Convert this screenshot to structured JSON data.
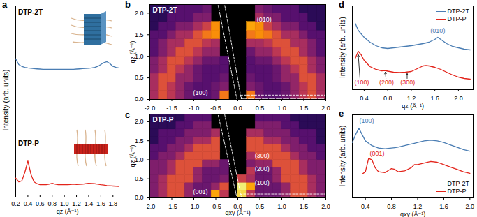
{
  "chart_data": [
    {
      "panel": "a",
      "type": "line",
      "x_label": "qz (Å⁻¹)",
      "y_label": "Intensity (arb. units)",
      "xlim": [
        0.2,
        1.9
      ],
      "ylim": [
        0,
        1
      ],
      "xticks": [
        0.2,
        0.4,
        0.6,
        0.8,
        {
          "value": 1,
          "label": "1.0"
        },
        1.2,
        1.4,
        1.6,
        1.8
      ],
      "tick_labels": "x",
      "x": [
        0.2,
        0.25,
        0.3,
        0.35,
        0.4,
        0.45,
        0.5,
        0.55,
        0.6,
        0.65,
        0.7,
        0.75,
        0.8,
        0.85,
        0.9,
        0.95,
        1.0,
        1.05,
        1.1,
        1.15,
        1.2,
        1.25,
        1.3,
        1.35,
        1.4,
        1.45,
        1.5,
        1.55,
        1.6,
        1.65,
        1.7,
        1.75,
        1.8,
        1.85,
        1.9
      ],
      "series": [
        {
          "name": "DTP-2T",
          "color": "#4a7db3",
          "values": [
            0.72,
            0.69,
            0.68,
            0.675,
            0.672,
            0.67,
            0.668,
            0.667,
            0.666,
            0.665,
            0.665,
            0.665,
            0.665,
            0.665,
            0.665,
            0.665,
            0.665,
            0.665,
            0.665,
            0.665,
            0.666,
            0.667,
            0.668,
            0.669,
            0.67,
            0.672,
            0.675,
            0.68,
            0.69,
            0.7,
            0.705,
            0.695,
            0.68,
            0.675,
            0.672
          ]
        },
        {
          "name": "DTP-P",
          "color": "#e3241b",
          "values": [
            0.09,
            0.07,
            0.075,
            0.12,
            0.18,
            0.11,
            0.07,
            0.06,
            0.055,
            0.055,
            0.055,
            0.058,
            0.062,
            0.058,
            0.055,
            0.055,
            0.055,
            0.055,
            0.056,
            0.058,
            0.056,
            0.057,
            0.058,
            0.06,
            0.062,
            0.061,
            0.06,
            0.058,
            0.055,
            0.053,
            0.05,
            0.049,
            0.048,
            0.047,
            0.046
          ]
        }
      ]
    },
    {
      "panel": "b",
      "type": "heatmap",
      "title": "DTP-2T",
      "y_label": "qz (Å⁻¹)",
      "xlim": [
        -2,
        2
      ],
      "ylim": [
        0,
        2.2
      ],
      "xticks": [
        {
          "value": -2,
          "label": "-2.0"
        },
        -1.5,
        {
          "value": -1,
          "label": "-1.0"
        },
        -0.5,
        {
          "value": 0,
          "label": "0.0"
        },
        0.5,
        {
          "value": 1,
          "label": "1.0"
        },
        1.5,
        {
          "value": 2,
          "label": "2.0"
        }
      ],
      "yticks": [
        {
          "value": 0,
          "label": "0.0"
        },
        0.5,
        {
          "value": 1,
          "label": "1.0"
        },
        1.5,
        {
          "value": 2,
          "label": "2.0"
        }
      ],
      "color": "inferno",
      "zlim": [
        0,
        1
      ],
      "x_edges": [
        -2,
        -1.8,
        -1.6,
        -1.4,
        -1.2,
        -1,
        -0.8,
        -0.6,
        -0.4,
        -0.2,
        0,
        0.2,
        0.4,
        0.6,
        0.8,
        1,
        1.2,
        1.4,
        1.6,
        1.8,
        2
      ],
      "y_edges": [
        0,
        0.2,
        0.4,
        0.6,
        0.8,
        1,
        1.2,
        1.4,
        1.6,
        1.8,
        2,
        2.2
      ],
      "cells": [
        [
          0.45,
          0.6,
          0.5,
          0.4,
          0.3,
          0.25,
          0.25,
          0.3,
          0.7,
          null,
          null,
          0.7,
          0.3,
          0.25,
          0.25,
          0.3,
          0.4,
          0.5,
          0.6,
          0.45
        ],
        [
          0.45,
          0.6,
          0.5,
          0.4,
          0.3,
          0.25,
          0.25,
          0.3,
          0.35,
          null,
          null,
          0.35,
          0.3,
          0.25,
          0.25,
          0.3,
          0.4,
          0.5,
          0.6,
          0.45
        ],
        [
          0.45,
          0.6,
          0.6,
          0.4,
          0.4,
          0.3,
          0.25,
          0.25,
          0.3,
          null,
          null,
          0.3,
          0.25,
          0.25,
          0.3,
          0.4,
          0.4,
          0.6,
          0.6,
          0.45
        ],
        [
          0.35,
          0.45,
          0.6,
          0.5,
          0.4,
          0.3,
          0.25,
          0.25,
          0.25,
          null,
          null,
          0.25,
          0.25,
          0.25,
          0.3,
          0.4,
          0.5,
          0.6,
          0.45,
          0.35
        ],
        [
          0.35,
          0.45,
          0.6,
          0.6,
          0.5,
          0.4,
          0.3,
          0.3,
          0.25,
          null,
          null,
          0.25,
          0.3,
          0.3,
          0.4,
          0.5,
          0.6,
          0.6,
          0.45,
          0.35
        ],
        [
          0.25,
          0.35,
          0.45,
          0.6,
          0.6,
          0.5,
          0.4,
          0.4,
          null,
          null,
          null,
          0.3,
          0.4,
          0.4,
          0.5,
          0.6,
          0.6,
          0.45,
          0.35,
          0.25
        ],
        [
          0.25,
          0.35,
          0.45,
          0.45,
          0.6,
          0.6,
          0.5,
          0.45,
          null,
          null,
          null,
          0.45,
          0.45,
          0.5,
          0.6,
          0.6,
          0.45,
          0.45,
          0.35,
          0.25
        ],
        [
          0.25,
          0.25,
          0.35,
          0.45,
          0.45,
          0.6,
          0.7,
          0.75,
          null,
          null,
          null,
          0.7,
          0.75,
          0.7,
          0.6,
          0.45,
          0.45,
          0.35,
          0.25,
          0.25
        ],
        [
          0.15,
          0.25,
          0.25,
          0.35,
          0.35,
          0.45,
          0.55,
          0.75,
          null,
          null,
          null,
          0.8,
          0.75,
          0.55,
          0.45,
          0.35,
          0.35,
          0.25,
          0.25,
          0.15
        ],
        [
          0.15,
          0.15,
          0.25,
          0.25,
          0.25,
          0.35,
          0.35,
          null,
          null,
          null,
          null,
          null,
          0.45,
          0.35,
          0.35,
          0.25,
          0.25,
          0.25,
          0.15,
          0.15
        ],
        [
          0.15,
          0.15,
          0.15,
          0.25,
          0.25,
          0.25,
          0.3,
          null,
          null,
          null,
          null,
          null,
          0.35,
          0.3,
          0.25,
          0.25,
          0.25,
          0.15,
          0.15,
          0.15
        ]
      ],
      "cuts": [
        [
          [
            -0.02,
            0
          ],
          [
            0.08,
            0
          ],
          [
            -0.3,
            2.2
          ],
          [
            -0.45,
            2.2
          ],
          [
            -0.02,
            0
          ]
        ],
        [
          [
            0.08,
            0.02
          ],
          [
            2,
            0.02
          ],
          [
            2,
            0.1
          ],
          [
            0.08,
            0.1
          ],
          [
            0.08,
            0.02
          ]
        ]
      ],
      "annotations": [
        {
          "text": "(100)",
          "x": -0.85,
          "y": 0.15
        },
        {
          "text": "(010)",
          "x": 0.6,
          "y": 1.85
        }
      ]
    },
    {
      "panel": "c",
      "type": "heatmap",
      "title": "DTP-P",
      "x_label": "qxy (Å⁻¹)",
      "y_label": "qz (Å⁻¹)",
      "xlim": [
        -2,
        2
      ],
      "ylim": [
        0,
        2.2
      ],
      "xticks": [
        {
          "value": -2,
          "label": "-2.0"
        },
        -1.5,
        {
          "value": -1,
          "label": "-1.0"
        },
        -0.5,
        {
          "value": 0,
          "label": "0.0"
        },
        0.5,
        {
          "value": 1,
          "label": "1.0"
        },
        1.5,
        {
          "value": 2,
          "label": "2.0"
        }
      ],
      "yticks": [
        {
          "value": 0,
          "label": "0.0"
        },
        0.5,
        {
          "value": 1,
          "label": "1.0"
        },
        1.5,
        {
          "value": 2,
          "label": "2.0"
        }
      ],
      "color": "inferno",
      "zlim": [
        0,
        1
      ],
      "x_edges": [
        -2,
        -1.8,
        -1.6,
        -1.4,
        -1.2,
        -1,
        -0.8,
        -0.6,
        -0.4,
        -0.2,
        0,
        0.2,
        0.4,
        0.6,
        0.8,
        1,
        1.2,
        1.4,
        1.6,
        1.8,
        2
      ],
      "y_edges": [
        0,
        0.2,
        0.4,
        0.6,
        0.8,
        1,
        1.2,
        1.4,
        1.6,
        1.8,
        2,
        2.2
      ],
      "cells": [
        [
          0.35,
          0.45,
          0.6,
          0.6,
          0.4,
          0.3,
          0.3,
          0.8,
          0.5,
          null,
          0.9,
          0.5,
          0.3,
          0.3,
          0.3,
          0.4,
          0.6,
          0.6,
          0.45,
          0.35
        ],
        [
          0.35,
          0.45,
          0.6,
          0.6,
          0.4,
          0.3,
          0.3,
          0.4,
          0.6,
          null,
          0.95,
          0.8,
          0.3,
          0.3,
          0.3,
          0.4,
          0.6,
          0.6,
          0.45,
          0.35
        ],
        [
          0.35,
          0.45,
          0.6,
          0.6,
          0.6,
          0.4,
          0.3,
          0.3,
          0.35,
          null,
          0.55,
          0.45,
          0.3,
          0.3,
          0.4,
          0.6,
          0.6,
          0.6,
          0.45,
          0.35
        ],
        [
          0.35,
          0.35,
          0.45,
          0.6,
          0.6,
          0.4,
          0.3,
          0.3,
          0.3,
          null,
          null,
          0.5,
          0.3,
          0.3,
          0.4,
          0.6,
          0.6,
          0.45,
          0.35,
          0.35
        ],
        [
          0.35,
          0.35,
          0.45,
          0.6,
          0.6,
          0.6,
          0.4,
          0.4,
          0.3,
          null,
          null,
          0.35,
          0.4,
          0.4,
          0.6,
          0.6,
          0.6,
          0.45,
          0.35,
          0.35
        ],
        [
          0.25,
          0.35,
          0.35,
          0.45,
          0.6,
          0.6,
          0.6,
          0.6,
          null,
          null,
          null,
          0.45,
          0.6,
          0.6,
          0.6,
          0.6,
          0.45,
          0.35,
          0.35,
          0.25
        ],
        [
          0.25,
          0.25,
          0.35,
          0.35,
          0.45,
          0.6,
          0.6,
          0.6,
          null,
          null,
          null,
          0.6,
          0.6,
          0.6,
          0.6,
          0.45,
          0.35,
          0.35,
          0.25,
          0.25
        ],
        [
          0.15,
          0.25,
          0.25,
          0.35,
          0.35,
          0.45,
          0.45,
          0.6,
          null,
          null,
          null,
          0.6,
          0.6,
          0.45,
          0.45,
          0.35,
          0.35,
          0.25,
          0.25,
          0.15
        ],
        [
          0.15,
          0.25,
          0.25,
          0.25,
          0.35,
          0.35,
          0.35,
          0.45,
          null,
          null,
          null,
          0.45,
          0.45,
          0.35,
          0.35,
          0.35,
          0.25,
          0.25,
          0.25,
          0.15
        ],
        [
          0.15,
          0.15,
          0.15,
          0.25,
          0.25,
          0.35,
          0.35,
          null,
          null,
          null,
          null,
          null,
          0.35,
          0.35,
          0.35,
          0.25,
          0.25,
          0.15,
          0.15,
          0.15
        ],
        [
          0.15,
          0.15,
          0.15,
          0.15,
          0.25,
          0.25,
          0.25,
          null,
          null,
          null,
          null,
          null,
          0.25,
          0.25,
          0.25,
          0.25,
          0.15,
          0.15,
          0.15,
          0.15
        ]
      ],
      "cuts": [
        [
          [
            -0.02,
            0
          ],
          [
            0.08,
            0
          ],
          [
            -0.3,
            2.2
          ],
          [
            -0.45,
            2.2
          ],
          [
            -0.02,
            0
          ]
        ],
        [
          [
            0.08,
            0.02
          ],
          [
            2,
            0.02
          ],
          [
            2,
            0.1
          ],
          [
            0.08,
            0.1
          ],
          [
            0.08,
            0.02
          ]
        ]
      ],
      "annotations": [
        {
          "text": "(001)",
          "x": -0.85,
          "y": 0.15
        },
        {
          "text": "(100)",
          "x": 0.55,
          "y": 0.4
        },
        {
          "text": "(200)",
          "x": 0.55,
          "y": 0.75
        },
        {
          "text": "(300)",
          "x": 0.55,
          "y": 1.1
        }
      ]
    },
    {
      "panel": "d",
      "type": "line",
      "x_label": "qz (Å⁻¹)",
      "y_label": "Intensity (arb. units)",
      "xlim": [
        0.2,
        2.25
      ],
      "ylim": [
        0,
        1.2
      ],
      "xticks": [
        0.4,
        0.8,
        1.2,
        1.6,
        {
          "value": 2,
          "label": "2.0"
        }
      ],
      "tick_labels": "x",
      "legend": "top-right",
      "x": [
        0.25,
        0.3,
        0.35,
        0.4,
        0.5,
        0.6,
        0.7,
        0.75,
        0.8,
        0.9,
        1.0,
        1.1,
        1.15,
        1.2,
        1.3,
        1.4,
        1.45,
        1.5,
        1.6,
        1.65,
        1.7,
        1.8,
        1.9,
        2.0,
        2.1,
        2.2
      ],
      "series": [
        {
          "name": "DTP-2T",
          "color": "#4a7db3",
          "values": [
            0.95,
            0.85,
            0.8,
            0.75,
            0.68,
            0.63,
            0.6,
            0.595,
            0.59,
            0.6,
            0.61,
            0.62,
            0.625,
            0.63,
            0.645,
            0.66,
            0.67,
            0.68,
            0.72,
            0.75,
            0.72,
            0.66,
            0.62,
            0.6,
            0.58,
            0.57
          ]
        },
        {
          "name": "DTP-P",
          "color": "#e3241b",
          "values": [
            0.45,
            0.55,
            0.5,
            0.42,
            0.33,
            0.29,
            0.27,
            0.275,
            0.265,
            0.25,
            0.245,
            0.25,
            0.255,
            0.26,
            0.3,
            0.34,
            0.345,
            0.34,
            0.32,
            0.305,
            0.29,
            0.25,
            0.21,
            0.18,
            0.16,
            0.15
          ]
        }
      ],
      "annotations": [
        {
          "text": "(100)",
          "x": 0.36,
          "y": 0.1,
          "color": "#e3241b",
          "arrow_from": [
            0.33,
            0.16
          ],
          "arrow_to": [
            0.3,
            0.5
          ]
        },
        {
          "text": "(200)",
          "x": 0.78,
          "y": 0.1,
          "color": "#e3241b",
          "arrow_from": [
            0.77,
            0.16
          ],
          "arrow_to": [
            0.76,
            0.25
          ]
        },
        {
          "text": "(300)",
          "x": 1.14,
          "y": 0.1,
          "color": "#e3241b",
          "arrow_from": [
            1.13,
            0.16
          ],
          "arrow_to": [
            1.13,
            0.23
          ]
        },
        {
          "text": "(010)",
          "x": 1.65,
          "y": 0.84,
          "color": "#4a7db3"
        }
      ]
    },
    {
      "panel": "e",
      "type": "line",
      "x_label": "qxy (Å⁻¹)",
      "y_label": "Intensity (arb. units)",
      "xlim": [
        0.2,
        2.05
      ],
      "ylim": [
        0,
        1.05
      ],
      "xticks": [
        0.4,
        0.8,
        1.2,
        1.6,
        {
          "value": 2,
          "label": "2.0"
        }
      ],
      "tick_labels": "x",
      "legend": "bottom-right",
      "x": [
        0.2,
        0.25,
        0.3,
        0.35,
        0.4,
        0.45,
        0.5,
        0.55,
        0.6,
        0.7,
        0.8,
        0.85,
        0.9,
        1.0,
        1.1,
        1.15,
        1.2,
        1.3,
        1.4,
        1.5,
        1.6,
        1.7,
        1.8,
        1.9,
        2.0
      ],
      "series": [
        {
          "name": "DTP-2T",
          "color": "#4a7db3",
          "values": [
            0.7,
            0.8,
            0.88,
            0.8,
            0.72,
            0.69,
            0.66,
            0.645,
            0.63,
            0.62,
            0.63,
            0.635,
            0.64,
            0.66,
            0.68,
            0.69,
            0.7,
            0.72,
            0.73,
            0.72,
            0.7,
            0.67,
            0.64,
            0.61,
            0.59
          ]
        },
        {
          "name": "DTP-P",
          "color": "#e3241b",
          "values": [
            null,
            null,
            null,
            0.3,
            0.33,
            0.5,
            0.48,
            0.38,
            0.33,
            0.32,
            0.37,
            0.36,
            0.33,
            0.34,
            0.38,
            0.42,
            0.42,
            0.44,
            0.46,
            0.45,
            0.42,
            0.39,
            0.36,
            0.33,
            0.31
          ]
        }
      ],
      "annotations": [
        {
          "text": "(100)",
          "x": 0.42,
          "y": 0.97,
          "color": "#4a7db3"
        },
        {
          "text": "(001)",
          "x": 0.58,
          "y": 0.56,
          "color": "#e3241b"
        }
      ]
    }
  ]
}
